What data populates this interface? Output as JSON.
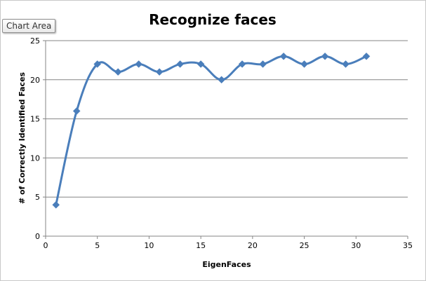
{
  "tooltip": {
    "label": "Chart Area"
  },
  "colors": {
    "series": "#4a7ebb",
    "grid": "#868686",
    "axis": "#868686"
  },
  "chart_data": {
    "type": "line",
    "title": "Recognize faces",
    "xlabel": "EigenFaces",
    "ylabel": "# of Correctly Identified Faces",
    "xlim": [
      0,
      35
    ],
    "ylim": [
      0,
      25
    ],
    "x_ticks": [
      0,
      5,
      10,
      15,
      20,
      25,
      30,
      35
    ],
    "y_ticks": [
      0,
      5,
      10,
      15,
      20,
      25
    ],
    "grid": {
      "horizontal": true,
      "vertical": false
    },
    "smooth": true,
    "marker": "diamond",
    "series": [
      {
        "x": [
          1,
          3,
          5,
          7,
          9,
          11,
          13,
          15,
          17,
          19,
          21,
          23,
          25,
          27,
          29,
          31
        ],
        "y": [
          4,
          16,
          22,
          21,
          22,
          21,
          22,
          22,
          20,
          22,
          22,
          23,
          22,
          23,
          22,
          23
        ]
      }
    ]
  }
}
